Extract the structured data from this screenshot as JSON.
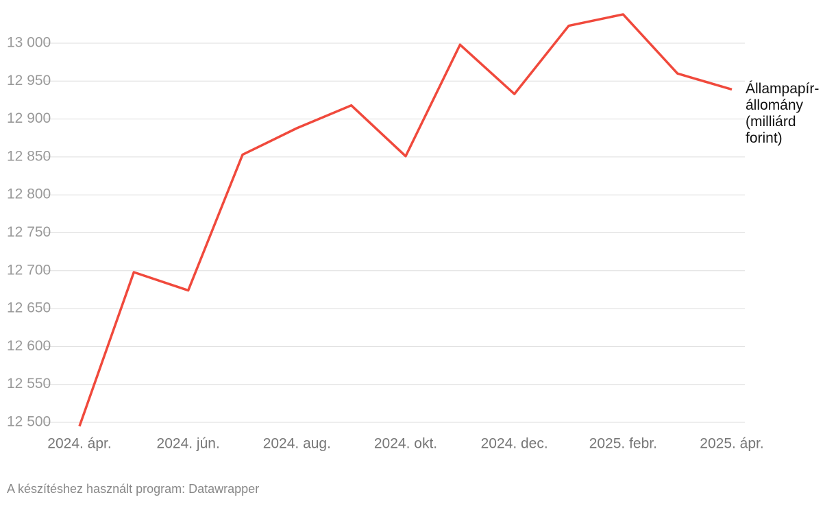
{
  "chart_data": {
    "type": "line",
    "categories": [
      "2024. ápr.",
      null,
      "2024. jún.",
      null,
      "2024. aug.",
      null,
      "2024. okt.",
      null,
      "2024. dec.",
      null,
      "2025. febr.",
      null,
      "2025. ápr."
    ],
    "series": [
      {
        "name": "Állampapír-állomány (milliárd forint)",
        "color": "#f0493c",
        "values": [
          12495,
          12698,
          12674,
          12853,
          12888,
          12918,
          12851,
          12998,
          12933,
          13023,
          13038,
          12960,
          12939
        ]
      }
    ],
    "ylim": [
      12500,
      13000
    ],
    "yticks": [
      {
        "value": 12500,
        "label": "12 500"
      },
      {
        "value": 12550,
        "label": "12 550"
      },
      {
        "value": 12600,
        "label": "12 600"
      },
      {
        "value": 12650,
        "label": "12 650"
      },
      {
        "value": 12700,
        "label": "12 700"
      },
      {
        "value": 12750,
        "label": "12 750"
      },
      {
        "value": 12800,
        "label": "12 800"
      },
      {
        "value": 12850,
        "label": "12 850"
      },
      {
        "value": 12900,
        "label": "12 900"
      },
      {
        "value": 12950,
        "label": "12 950"
      },
      {
        "value": 13000,
        "label": "13 000"
      }
    ],
    "grid": true,
    "source": "A készítéshez használt program: Datawrapper"
  }
}
